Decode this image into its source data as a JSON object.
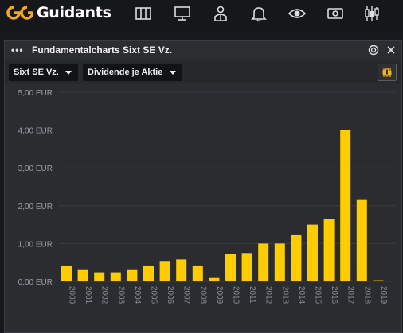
{
  "app": {
    "logo_text": "Guidants",
    "nav_icons": [
      "layout-columns-icon",
      "monitor-icon",
      "user-icon",
      "bell-icon",
      "eye-icon",
      "money-icon",
      "candlestick-icon"
    ]
  },
  "window": {
    "title": "Fundamentalcharts Sixt SE Vz.",
    "menu_icon": "dots-icon",
    "target_icon": "target-icon",
    "close_icon": "close-icon"
  },
  "toolbar": {
    "instrument_select": "Sixt SE Vz.",
    "metric_select": "Dividende je Aktie",
    "chart_type_icon": "candlestick-icon"
  },
  "colors": {
    "bar": "#ffcc00",
    "background": "#2a2c30",
    "grid": "#3a3d42"
  },
  "chart_data": {
    "type": "bar",
    "categories": [
      "2000",
      "2001",
      "2002",
      "2003",
      "2004",
      "2005",
      "2006",
      "2007",
      "2008",
      "2009",
      "2010",
      "2011",
      "2012",
      "2013",
      "2014",
      "2015",
      "2016",
      "2017",
      "2018",
      "2019"
    ],
    "values": [
      0.4,
      0.3,
      0.24,
      0.24,
      0.3,
      0.4,
      0.52,
      0.58,
      0.4,
      0.09,
      0.72,
      0.75,
      1.0,
      1.0,
      1.22,
      1.5,
      1.65,
      4.0,
      2.15,
      0.03
    ],
    "ylim": [
      0,
      5
    ],
    "yticks": [
      "0,00 EUR",
      "1,00 EUR",
      "2,00 EUR",
      "3,00 EUR",
      "4,00 EUR",
      "5,00 EUR"
    ],
    "ytick_values": [
      0,
      1,
      2,
      3,
      4,
      5
    ],
    "grid": true
  }
}
